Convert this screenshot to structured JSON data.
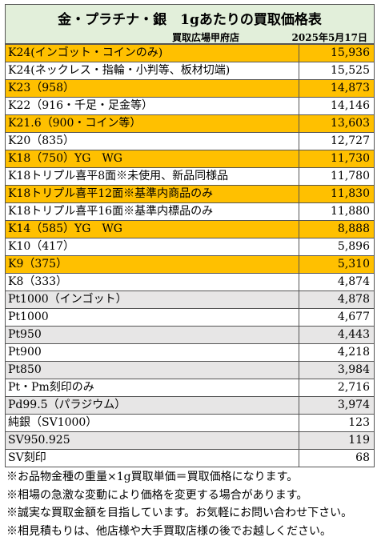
{
  "header": {
    "title": "金・プラチナ・銀　1gあたりの買取価格表",
    "shop": "買取広場甲府店",
    "date": "2025年5月17日"
  },
  "table": {
    "rows": [
      {
        "name": "K24(インゴット・コインのみ)",
        "price": "15,936",
        "fill": "#ffc000"
      },
      {
        "name": "K24(ネックレス・指輪・小判等、板材切端)",
        "price": "15,525",
        "fill": "#ffffff"
      },
      {
        "name": "K23（958）",
        "price": "14,873",
        "fill": "#ffc000"
      },
      {
        "name": "K22（916・千足・足金等）",
        "price": "14,146",
        "fill": "#ffffff"
      },
      {
        "name": "K21.6（900・コイン等）",
        "price": "13,603",
        "fill": "#ffc000"
      },
      {
        "name": "K20（835）",
        "price": "12,727",
        "fill": "#ffffff"
      },
      {
        "name": "K18（750）YG　WG",
        "price": "11,730",
        "fill": "#ffc000"
      },
      {
        "name": "K18トリプル喜平8面※未使用、新品同様品",
        "price": "11,780",
        "fill": "#ffffff"
      },
      {
        "name": "K18トリプル喜平12面※基準内商品のみ",
        "price": "11,830",
        "fill": "#ffc000"
      },
      {
        "name": "K18トリプル喜平16面※基準内標品のみ",
        "price": "11,880",
        "fill": "#ffffff"
      },
      {
        "name": "K14（585）YG　WG",
        "price": "8,888",
        "fill": "#ffc000"
      },
      {
        "name": "K10（417）",
        "price": "5,896",
        "fill": "#ffffff"
      },
      {
        "name": "K9（375）",
        "price": "5,310",
        "fill": "#ffc000"
      },
      {
        "name": "K8（333）",
        "price": "4,874",
        "fill": "#ffffff"
      },
      {
        "name": "Pt1000（インゴット）",
        "price": "4,878",
        "fill": "#e7e6e6"
      },
      {
        "name": "Pt1000",
        "price": "4,677",
        "fill": "#ffffff"
      },
      {
        "name": "Pt950",
        "price": "4,443",
        "fill": "#e7e6e6"
      },
      {
        "name": "Pt900",
        "price": "4,218",
        "fill": "#ffffff"
      },
      {
        "name": "Pt850",
        "price": "3,984",
        "fill": "#e7e6e6"
      },
      {
        "name": "Pt・Pm刻印のみ",
        "price": "2,716",
        "fill": "#ffffff"
      },
      {
        "name": "Pd99.5（パラジウム）",
        "price": "3,974",
        "fill": "#e7e6e6"
      },
      {
        "name": "純銀（SV1000）",
        "price": "123",
        "fill": "#ffffff"
      },
      {
        "name": "SV950.925",
        "price": "119",
        "fill": "#e7e6e6"
      },
      {
        "name": "SV刻印",
        "price": "68",
        "fill": "#ffffff"
      }
    ]
  },
  "notes": [
    "※お品物金種の重量×1g買取単価＝買取価格になります。",
    "※相場の急激な変動により価格を変更する場合があります。",
    "※誠実な買取金額を目指しています。お気軽にお問い合わせ下さい。",
    "※相見積もりは、他店様や大手買取店様の後でお越しください。"
  ]
}
